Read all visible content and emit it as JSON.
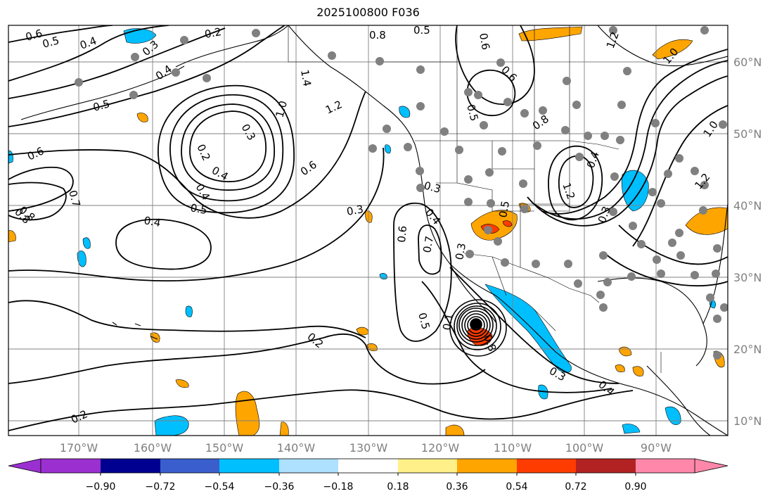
{
  "title": "2025100800 F036",
  "axes": {
    "lon_labels": [
      "170°W",
      "160°W",
      "150°W",
      "140°W",
      "130°W",
      "120°W",
      "110°W",
      "100°W",
      "90°W"
    ],
    "lat_labels": [
      "60°N",
      "50°N",
      "40°N",
      "30°N",
      "20°N",
      "10°N"
    ],
    "grid_color": "#808080",
    "label_color": "#808080"
  },
  "colorbar": {
    "tick_labels": [
      "−0.90",
      "−0.72",
      "−0.54",
      "−0.36",
      "−0.18",
      "0.18",
      "0.36",
      "0.54",
      "0.72",
      "0.90"
    ],
    "colors": [
      "#9b30d0",
      "#000090",
      "#3a5fcd",
      "#00bfff",
      "#aee0ff",
      "#ffffff",
      "#fff08a",
      "#ffa500",
      "#ff3c00",
      "#b22222",
      "#ff88aa"
    ]
  },
  "contour_labels": [
    {
      "t": "0.6"
    },
    {
      "t": "0.5"
    },
    {
      "t": "0.4"
    },
    {
      "t": "0.3"
    },
    {
      "t": "0.2"
    },
    {
      "t": "0.8"
    },
    {
      "t": "0.5"
    },
    {
      "t": "0.6"
    },
    {
      "t": "1.2"
    },
    {
      "t": "1.0"
    },
    {
      "t": "0.4"
    },
    {
      "t": "1.4"
    },
    {
      "t": "1.0"
    },
    {
      "t": "1.2"
    },
    {
      "t": "0.3"
    },
    {
      "t": "0.2"
    },
    {
      "t": "0.4"
    },
    {
      "t": "0.5"
    },
    {
      "t": "0.6"
    },
    {
      "t": "0.6"
    },
    {
      "t": "0.7"
    },
    {
      "t": "0.8"
    },
    {
      "t": "0.4"
    },
    {
      "t": "0.4"
    },
    {
      "t": "0.5"
    },
    {
      "t": "0.3"
    },
    {
      "t": "0.6"
    },
    {
      "t": "0.3"
    },
    {
      "t": "0.4"
    },
    {
      "t": "0.3"
    },
    {
      "t": "0.7"
    },
    {
      "t": "0.5"
    },
    {
      "t": "0.2"
    },
    {
      "t": "0.2"
    },
    {
      "t": "0.8"
    },
    {
      "t": "0.6"
    },
    {
      "t": "0.5"
    },
    {
      "t": "0.8"
    },
    {
      "t": "1.2"
    },
    {
      "t": "0.4"
    },
    {
      "t": "0.3"
    },
    {
      "t": "0.4"
    },
    {
      "t": "0.8"
    },
    {
      "t": "0.3"
    },
    {
      "t": "1.0"
    },
    {
      "t": "1.2"
    },
    {
      "t": "0.1"
    },
    {
      "t": "0.5"
    }
  ]
}
